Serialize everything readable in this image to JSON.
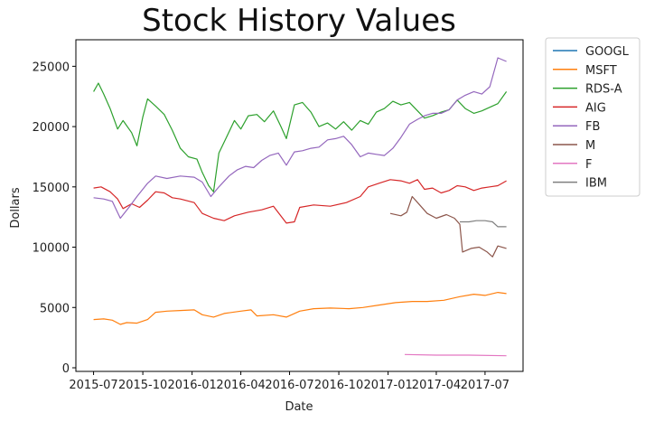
{
  "chart_data": {
    "type": "line",
    "title": "Stock History Values",
    "xlabel": "Date",
    "ylabel": "Dollars",
    "x_ticks": [
      "2015-07",
      "2015-10",
      "2016-01",
      "2016-04",
      "2016-07",
      "2016-10",
      "2017-01",
      "2017-04",
      "2017-07"
    ],
    "y_ticks": [
      0,
      5000,
      10000,
      15000,
      20000,
      25000
    ],
    "xlim": [
      "2015-05-29",
      "2017-09-10"
    ],
    "ylim": [
      -300,
      27200
    ],
    "grid": false,
    "legend_position": "outside-top-right",
    "series": [
      {
        "name": "GOOGL",
        "color": "#1f77b4",
        "points": []
      },
      {
        "name": "MSFT",
        "color": "#ff7f0e",
        "points": [
          [
            "2015-07-01",
            4000
          ],
          [
            "2015-07-20",
            4050
          ],
          [
            "2015-08-05",
            3950
          ],
          [
            "2015-08-20",
            3600
          ],
          [
            "2015-09-01",
            3750
          ],
          [
            "2015-09-20",
            3700
          ],
          [
            "2015-10-10",
            4000
          ],
          [
            "2015-10-25",
            4600
          ],
          [
            "2015-11-15",
            4700
          ],
          [
            "2015-12-10",
            4750
          ],
          [
            "2016-01-05",
            4800
          ],
          [
            "2016-01-20",
            4400
          ],
          [
            "2016-02-10",
            4200
          ],
          [
            "2016-03-01",
            4500
          ],
          [
            "2016-04-01",
            4700
          ],
          [
            "2016-04-20",
            4800
          ],
          [
            "2016-05-01",
            4300
          ],
          [
            "2016-06-01",
            4400
          ],
          [
            "2016-06-25",
            4200
          ],
          [
            "2016-07-20",
            4700
          ],
          [
            "2016-08-15",
            4900
          ],
          [
            "2016-09-15",
            4950
          ],
          [
            "2016-10-20",
            4900
          ],
          [
            "2016-11-15",
            5000
          ],
          [
            "2016-12-15",
            5200
          ],
          [
            "2017-01-15",
            5400
          ],
          [
            "2017-02-15",
            5500
          ],
          [
            "2017-03-15",
            5500
          ],
          [
            "2017-04-15",
            5600
          ],
          [
            "2017-05-15",
            5900
          ],
          [
            "2017-06-10",
            6100
          ],
          [
            "2017-07-01",
            6000
          ],
          [
            "2017-07-25",
            6250
          ],
          [
            "2017-08-10",
            6150
          ]
        ]
      },
      {
        "name": "RDS-A",
        "color": "#2ca02c",
        "points": [
          [
            "2015-07-01",
            22900
          ],
          [
            "2015-07-10",
            23600
          ],
          [
            "2015-07-20",
            22700
          ],
          [
            "2015-08-01",
            21500
          ],
          [
            "2015-08-15",
            19800
          ],
          [
            "2015-08-25",
            20500
          ],
          [
            "2015-09-10",
            19500
          ],
          [
            "2015-09-20",
            18400
          ],
          [
            "2015-10-01",
            20800
          ],
          [
            "2015-10-10",
            22300
          ],
          [
            "2015-10-25",
            21700
          ],
          [
            "2015-11-10",
            21000
          ],
          [
            "2015-11-25",
            19700
          ],
          [
            "2015-12-10",
            18200
          ],
          [
            "2015-12-25",
            17500
          ],
          [
            "2016-01-10",
            17300
          ],
          [
            "2016-01-20",
            16200
          ],
          [
            "2016-02-01",
            15100
          ],
          [
            "2016-02-10",
            14600
          ],
          [
            "2016-02-20",
            17800
          ],
          [
            "2016-03-05",
            19100
          ],
          [
            "2016-03-20",
            20500
          ],
          [
            "2016-04-01",
            19800
          ],
          [
            "2016-04-15",
            20900
          ],
          [
            "2016-05-01",
            21000
          ],
          [
            "2016-05-15",
            20400
          ],
          [
            "2016-06-01",
            21300
          ],
          [
            "2016-06-15",
            20000
          ],
          [
            "2016-06-25",
            19000
          ],
          [
            "2016-07-10",
            21800
          ],
          [
            "2016-07-25",
            22000
          ],
          [
            "2016-08-10",
            21200
          ],
          [
            "2016-08-25",
            20000
          ],
          [
            "2016-09-10",
            20300
          ],
          [
            "2016-09-25",
            19800
          ],
          [
            "2016-10-10",
            20400
          ],
          [
            "2016-10-25",
            19700
          ],
          [
            "2016-11-10",
            20500
          ],
          [
            "2016-11-25",
            20200
          ],
          [
            "2016-12-10",
            21200
          ],
          [
            "2016-12-25",
            21500
          ],
          [
            "2017-01-10",
            22100
          ],
          [
            "2017-01-25",
            21800
          ],
          [
            "2017-02-10",
            22000
          ],
          [
            "2017-02-25",
            21300
          ],
          [
            "2017-03-10",
            20700
          ],
          [
            "2017-03-25",
            20900
          ],
          [
            "2017-04-10",
            21200
          ],
          [
            "2017-04-25",
            21400
          ],
          [
            "2017-05-10",
            22200
          ],
          [
            "2017-05-25",
            21500
          ],
          [
            "2017-06-10",
            21100
          ],
          [
            "2017-06-25",
            21300
          ],
          [
            "2017-07-10",
            21600
          ],
          [
            "2017-07-25",
            21900
          ],
          [
            "2017-08-10",
            22900
          ]
        ]
      },
      {
        "name": "AIG",
        "color": "#d62728",
        "points": [
          [
            "2015-07-01",
            14900
          ],
          [
            "2015-07-15",
            15000
          ],
          [
            "2015-08-01",
            14600
          ],
          [
            "2015-08-15",
            14000
          ],
          [
            "2015-08-25",
            13200
          ],
          [
            "2015-09-10",
            13600
          ],
          [
            "2015-09-25",
            13300
          ],
          [
            "2015-10-10",
            13900
          ],
          [
            "2015-10-25",
            14600
          ],
          [
            "2015-11-10",
            14500
          ],
          [
            "2015-11-25",
            14100
          ],
          [
            "2015-12-10",
            14000
          ],
          [
            "2016-01-05",
            13700
          ],
          [
            "2016-01-20",
            12800
          ],
          [
            "2016-02-10",
            12400
          ],
          [
            "2016-03-01",
            12200
          ],
          [
            "2016-03-20",
            12600
          ],
          [
            "2016-04-15",
            12900
          ],
          [
            "2016-05-10",
            13100
          ],
          [
            "2016-06-01",
            13400
          ],
          [
            "2016-06-25",
            12000
          ],
          [
            "2016-07-10",
            12100
          ],
          [
            "2016-07-20",
            13300
          ],
          [
            "2016-08-15",
            13500
          ],
          [
            "2016-09-15",
            13400
          ],
          [
            "2016-10-15",
            13700
          ],
          [
            "2016-11-10",
            14200
          ],
          [
            "2016-11-25",
            15000
          ],
          [
            "2016-12-15",
            15300
          ],
          [
            "2017-01-05",
            15600
          ],
          [
            "2017-01-25",
            15500
          ],
          [
            "2017-02-10",
            15300
          ],
          [
            "2017-02-25",
            15600
          ],
          [
            "2017-03-10",
            14800
          ],
          [
            "2017-03-25",
            14900
          ],
          [
            "2017-04-10",
            14500
          ],
          [
            "2017-04-25",
            14700
          ],
          [
            "2017-05-10",
            15100
          ],
          [
            "2017-05-25",
            15000
          ],
          [
            "2017-06-10",
            14700
          ],
          [
            "2017-06-25",
            14900
          ],
          [
            "2017-07-10",
            15000
          ],
          [
            "2017-07-25",
            15100
          ],
          [
            "2017-08-10",
            15500
          ]
        ]
      },
      {
        "name": "FB",
        "color": "#9467bd",
        "points": [
          [
            "2015-07-01",
            14100
          ],
          [
            "2015-07-20",
            14000
          ],
          [
            "2015-08-05",
            13800
          ],
          [
            "2015-08-20",
            12400
          ],
          [
            "2015-09-05",
            13300
          ],
          [
            "2015-09-20",
            14200
          ],
          [
            "2015-10-10",
            15300
          ],
          [
            "2015-10-25",
            15900
          ],
          [
            "2015-11-15",
            15700
          ],
          [
            "2015-12-10",
            15900
          ],
          [
            "2016-01-05",
            15800
          ],
          [
            "2016-01-20",
            15400
          ],
          [
            "2016-02-05",
            14200
          ],
          [
            "2016-02-20",
            15000
          ],
          [
            "2016-03-10",
            15900
          ],
          [
            "2016-03-25",
            16400
          ],
          [
            "2016-04-10",
            16700
          ],
          [
            "2016-04-25",
            16600
          ],
          [
            "2016-05-10",
            17200
          ],
          [
            "2016-05-25",
            17600
          ],
          [
            "2016-06-10",
            17800
          ],
          [
            "2016-06-25",
            16800
          ],
          [
            "2016-07-10",
            17900
          ],
          [
            "2016-07-25",
            18000
          ],
          [
            "2016-08-10",
            18200
          ],
          [
            "2016-08-25",
            18300
          ],
          [
            "2016-09-10",
            18900
          ],
          [
            "2016-09-25",
            19000
          ],
          [
            "2016-10-10",
            19200
          ],
          [
            "2016-10-25",
            18500
          ],
          [
            "2016-11-10",
            17500
          ],
          [
            "2016-11-25",
            17800
          ],
          [
            "2016-12-10",
            17700
          ],
          [
            "2016-12-25",
            17600
          ],
          [
            "2017-01-10",
            18200
          ],
          [
            "2017-01-25",
            19100
          ],
          [
            "2017-02-10",
            20200
          ],
          [
            "2017-02-25",
            20600
          ],
          [
            "2017-03-10",
            20900
          ],
          [
            "2017-03-25",
            21100
          ],
          [
            "2017-04-10",
            21100
          ],
          [
            "2017-04-25",
            21400
          ],
          [
            "2017-05-10",
            22200
          ],
          [
            "2017-05-25",
            22600
          ],
          [
            "2017-06-10",
            22900
          ],
          [
            "2017-06-25",
            22700
          ],
          [
            "2017-07-10",
            23300
          ],
          [
            "2017-07-25",
            25700
          ],
          [
            "2017-08-10",
            25400
          ]
        ]
      },
      {
        "name": "M",
        "color": "#8c564b",
        "points": [
          [
            "2017-01-05",
            12800
          ],
          [
            "2017-01-25",
            12600
          ],
          [
            "2017-02-05",
            12900
          ],
          [
            "2017-02-15",
            14200
          ],
          [
            "2017-03-01",
            13500
          ],
          [
            "2017-03-15",
            12800
          ],
          [
            "2017-04-01",
            12400
          ],
          [
            "2017-04-20",
            12700
          ],
          [
            "2017-05-05",
            12400
          ],
          [
            "2017-05-15",
            11900
          ],
          [
            "2017-05-20",
            9600
          ],
          [
            "2017-06-05",
            9900
          ],
          [
            "2017-06-20",
            10000
          ],
          [
            "2017-07-05",
            9600
          ],
          [
            "2017-07-15",
            9200
          ],
          [
            "2017-07-25",
            10100
          ],
          [
            "2017-08-10",
            9900
          ]
        ]
      },
      {
        "name": "F",
        "color": "#e377c2",
        "points": [
          [
            "2017-02-01",
            1100
          ],
          [
            "2017-04-01",
            1050
          ],
          [
            "2017-06-01",
            1050
          ],
          [
            "2017-08-10",
            1000
          ]
        ]
      },
      {
        "name": "IBM",
        "color": "#7f7f7f",
        "points": [
          [
            "2017-05-15",
            12100
          ],
          [
            "2017-06-01",
            12100
          ],
          [
            "2017-06-15",
            12200
          ],
          [
            "2017-07-01",
            12200
          ],
          [
            "2017-07-15",
            12100
          ],
          [
            "2017-07-25",
            11700
          ],
          [
            "2017-08-10",
            11700
          ]
        ]
      }
    ]
  }
}
